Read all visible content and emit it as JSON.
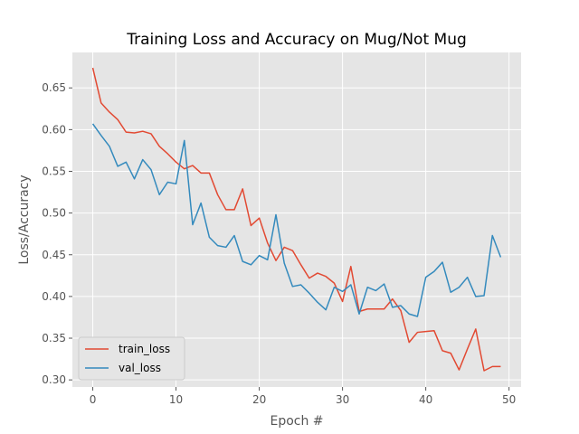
{
  "chart_data": {
    "type": "line",
    "title": "Training Loss and Accuracy on Mug/Not Mug",
    "xlabel": "Epoch #",
    "ylabel": "Loss/Accuracy",
    "xlim": [
      -2.45,
      51.45
    ],
    "ylim": [
      0.2915,
      0.6925
    ],
    "xticks": [
      0,
      10,
      20,
      30,
      40,
      50
    ],
    "yticks": [
      0.3,
      0.35,
      0.4,
      0.45,
      0.5,
      0.55,
      0.6,
      0.65
    ],
    "ytick_labels": [
      "0.30",
      "0.35",
      "0.40",
      "0.45",
      "0.50",
      "0.55",
      "0.60",
      "0.65"
    ],
    "grid": true,
    "legend_position": "lower-left",
    "x": [
      0,
      1,
      2,
      3,
      4,
      5,
      6,
      7,
      8,
      9,
      10,
      11,
      12,
      13,
      14,
      15,
      16,
      17,
      18,
      19,
      20,
      21,
      22,
      23,
      24,
      25,
      26,
      27,
      28,
      29,
      30,
      31,
      32,
      33,
      34,
      35,
      36,
      37,
      38,
      39,
      40,
      41,
      42,
      43,
      44,
      45,
      46,
      47,
      48,
      49
    ],
    "series": [
      {
        "name": "train_loss",
        "color": "#e24a33",
        "values": [
          0.674,
          0.632,
          0.621,
          0.612,
          0.597,
          0.596,
          0.598,
          0.595,
          0.58,
          0.571,
          0.561,
          0.553,
          0.557,
          0.548,
          0.548,
          0.522,
          0.504,
          0.504,
          0.529,
          0.485,
          0.494,
          0.464,
          0.443,
          0.459,
          0.455,
          0.438,
          0.422,
          0.428,
          0.424,
          0.416,
          0.394,
          0.436,
          0.382,
          0.385,
          0.385,
          0.385,
          0.397,
          0.383,
          0.345,
          0.357,
          0.358,
          0.359,
          0.335,
          0.332,
          0.312,
          0.337,
          0.361,
          0.311,
          0.316,
          0.316
        ]
      },
      {
        "name": "val_loss",
        "color": "#348abd",
        "values": [
          0.607,
          0.593,
          0.58,
          0.556,
          0.561,
          0.541,
          0.564,
          0.552,
          0.522,
          0.537,
          0.535,
          0.587,
          0.486,
          0.512,
          0.471,
          0.461,
          0.459,
          0.473,
          0.442,
          0.438,
          0.449,
          0.444,
          0.498,
          0.44,
          0.412,
          0.414,
          0.404,
          0.393,
          0.384,
          0.411,
          0.406,
          0.414,
          0.379,
          0.411,
          0.407,
          0.415,
          0.387,
          0.389,
          0.379,
          0.376,
          0.423,
          0.43,
          0.441,
          0.405,
          0.411,
          0.423,
          0.4,
          0.401,
          0.473,
          0.447
        ]
      }
    ]
  }
}
